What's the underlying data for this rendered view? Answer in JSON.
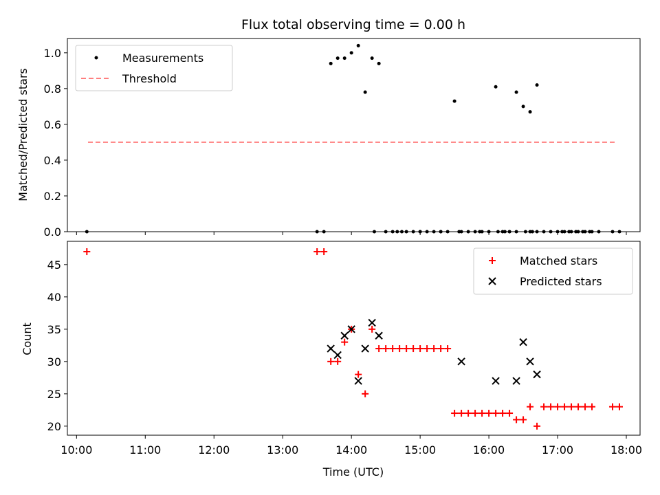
{
  "chart_data": [
    {
      "type": "scatter",
      "title": "Flux total observing time = 0.00 h",
      "xlabel": "",
      "ylabel": "Matched/Predicted stars",
      "ylim": [
        0.0,
        1.08
      ],
      "yticks": [
        "0.0",
        "0.2",
        "0.4",
        "0.6",
        "0.8",
        "1.0"
      ],
      "legend": {
        "position": "top-left",
        "entries": [
          "Measurements",
          "Threshold"
        ]
      },
      "threshold": {
        "name": "Threshold",
        "value": 0.5,
        "x_start": "10:10",
        "x_end": "17:52",
        "color": "#ff7f7f"
      },
      "series": [
        {
          "name": "Measurements",
          "color": "#000000",
          "x": [
            "10:09",
            "13:30",
            "13:36",
            "13:42",
            "13:48",
            "13:54",
            "14:00",
            "14:06",
            "14:12",
            "14:18",
            "14:24",
            "14:30",
            "14:36",
            "14:40",
            "14:48",
            "14:54",
            "15:00",
            "15:06",
            "15:12",
            "15:18",
            "15:24",
            "15:30",
            "15:36",
            "15:42",
            "15:48",
            "15:54",
            "16:00",
            "16:06",
            "16:12",
            "16:18",
            "16:24",
            "16:30",
            "16:36",
            "16:42",
            "16:48",
            "16:54",
            "17:00",
            "17:06",
            "17:12",
            "17:18",
            "17:24",
            "17:30",
            "17:36",
            "17:48",
            "17:54",
            "14:20",
            "14:44",
            "15:00",
            "15:18",
            "15:34",
            "15:52",
            "16:08",
            "16:14",
            "16:18",
            "16:32",
            "16:36",
            "16:42",
            "17:04",
            "17:10",
            "17:16",
            "17:22",
            "17:28",
            "16:24",
            "16:38"
          ],
          "y": [
            0,
            0,
            0,
            0.94,
            0.97,
            0.97,
            1.0,
            1.04,
            0.78,
            0.97,
            0.94,
            0,
            0,
            0,
            0,
            0,
            0,
            0,
            0,
            0,
            0,
            0.73,
            0,
            0,
            0,
            0,
            0,
            0.81,
            0,
            0,
            0.78,
            0.7,
            0.67,
            0.82,
            0,
            0,
            0,
            0,
            0,
            0,
            0,
            0,
            0,
            0,
            0,
            0,
            0,
            0,
            0,
            0,
            0,
            0,
            0,
            0,
            0,
            0,
            0,
            0,
            0,
            0,
            0,
            0,
            0,
            0
          ]
        }
      ]
    },
    {
      "type": "scatter",
      "title": "",
      "xlabel": "Time (UTC)",
      "ylabel": "Count",
      "ylim": [
        18.6,
        48.6
      ],
      "yticks": [
        "20",
        "25",
        "30",
        "35",
        "40",
        "45"
      ],
      "xticks": [
        "10:00",
        "11:00",
        "12:00",
        "13:00",
        "14:00",
        "15:00",
        "16:00",
        "17:00",
        "18:00"
      ],
      "xlim": [
        "09:52",
        "18:12"
      ],
      "legend": {
        "position": "top-right",
        "entries": [
          "Matched stars",
          "Predicted stars"
        ]
      },
      "series": [
        {
          "name": "Matched stars",
          "color": "#ff0000",
          "marker": "plus",
          "x": [
            "10:09",
            "13:30",
            "13:36",
            "13:42",
            "13:48",
            "13:54",
            "14:00",
            "14:06",
            "14:12",
            "14:18",
            "14:24",
            "14:30",
            "14:36",
            "14:42",
            "14:48",
            "14:54",
            "15:00",
            "15:06",
            "15:12",
            "15:18",
            "15:24",
            "15:30",
            "15:36",
            "15:42",
            "15:48",
            "15:54",
            "16:00",
            "16:06",
            "16:12",
            "16:18",
            "16:24",
            "16:30",
            "16:36",
            "16:42",
            "16:48",
            "16:54",
            "17:00",
            "17:06",
            "17:12",
            "17:18",
            "17:24",
            "17:30",
            "17:48",
            "17:54"
          ],
          "y": [
            47,
            47,
            47,
            30,
            30,
            33,
            35,
            28,
            25,
            35,
            32,
            32,
            32,
            32,
            32,
            32,
            32,
            32,
            32,
            32,
            32,
            22,
            22,
            22,
            22,
            22,
            22,
            22,
            22,
            22,
            21,
            21,
            23,
            20,
            23,
            23,
            23,
            23,
            23,
            23,
            23,
            23,
            23,
            23
          ]
        },
        {
          "name": "Predicted stars",
          "color": "#000000",
          "marker": "x",
          "x": [
            "13:42",
            "13:48",
            "13:54",
            "14:00",
            "14:06",
            "14:12",
            "14:18",
            "14:24",
            "15:36",
            "16:06",
            "16:24",
            "16:30",
            "16:36",
            "16:42"
          ],
          "y": [
            32,
            31,
            34,
            35,
            27,
            32,
            36,
            34,
            30,
            27,
            27,
            33,
            30,
            28
          ]
        }
      ]
    }
  ]
}
